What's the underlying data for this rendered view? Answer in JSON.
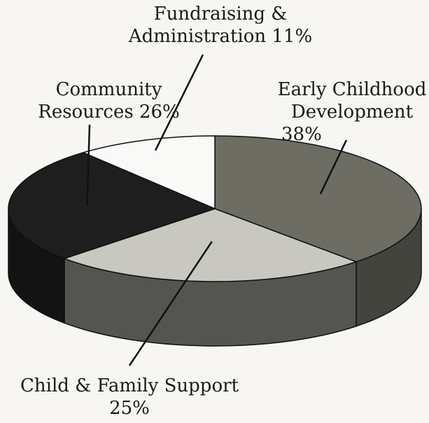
{
  "chart_data": {
    "type": "pie",
    "three_d": true,
    "slices": [
      {
        "name": "Early Childhood Development",
        "value": 38,
        "color": "#6e6d64",
        "label_lines": [
          "Early Childhood",
          "Development",
          "38%"
        ]
      },
      {
        "name": "Child & Family Support",
        "value": 25,
        "color": "#c8c8c0",
        "label_lines": [
          "Child & Family Support",
          "25%"
        ]
      },
      {
        "name": "Community Resources",
        "value": 26,
        "color": "#1f1e1e",
        "label_lines": [
          "Community",
          "Resources 26%"
        ]
      },
      {
        "name": "Fundraising & Administration",
        "value": 11,
        "color": "#f9f9f7",
        "label_lines": [
          "Fundraising &",
          "Administration 11%"
        ]
      }
    ]
  }
}
